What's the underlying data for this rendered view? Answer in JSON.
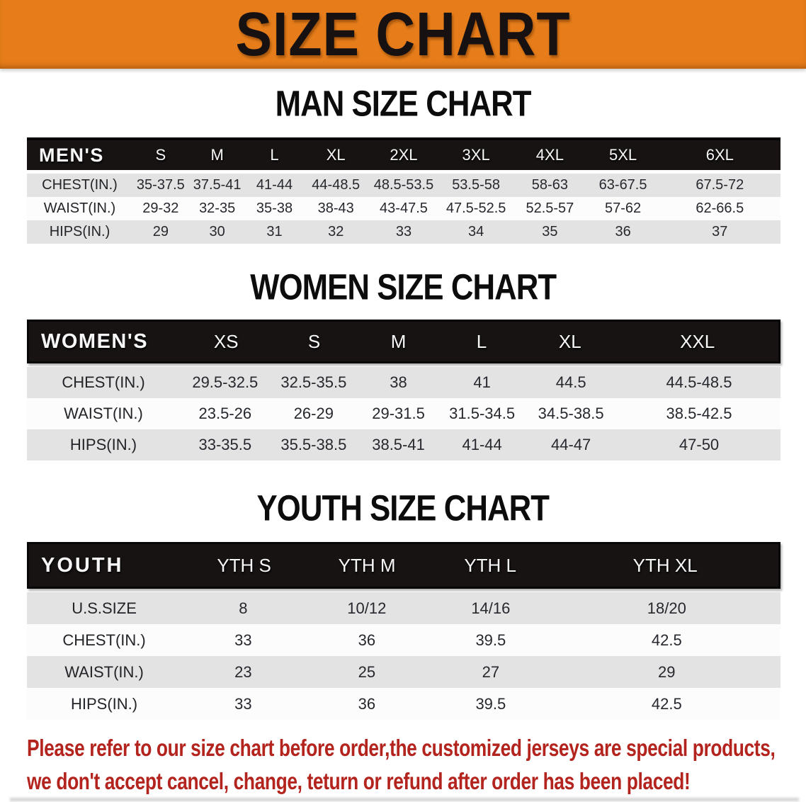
{
  "banner": {
    "title": "SIZE CHART",
    "bg_color": "#e67d1a"
  },
  "men": {
    "section_title": "MAN SIZE CHART",
    "header_label": "MEN'S",
    "columns": [
      "S",
      "M",
      "L",
      "XL",
      "2XL",
      "3XL",
      "4XL",
      "5XL",
      "6XL"
    ],
    "rows": [
      {
        "label": "CHEST(IN.)",
        "values": [
          "35-37.5",
          "37.5-41",
          "41-44",
          "44-48.5",
          "48.5-53.5",
          "53.5-58",
          "58-63",
          "63-67.5",
          "67.5-72"
        ]
      },
      {
        "label": "WAIST(IN.)",
        "values": [
          "29-32",
          "32-35",
          "35-38",
          "38-43",
          "43-47.5",
          "47.5-52.5",
          "52.5-57",
          "57-62",
          "62-66.5"
        ]
      },
      {
        "label": "HIPS(IN.)",
        "values": [
          "29",
          "30",
          "31",
          "32",
          "33",
          "34",
          "35",
          "36",
          "37"
        ]
      }
    ]
  },
  "women": {
    "section_title": "WOMEN SIZE CHART",
    "header_label": "WOMEN'S",
    "columns": [
      "XS",
      "S",
      "M",
      "L",
      "XL",
      "XXL"
    ],
    "rows": [
      {
        "label": "CHEST(IN.)",
        "values": [
          "29.5-32.5",
          "32.5-35.5",
          "38",
          "41",
          "44.5",
          "44.5-48.5"
        ]
      },
      {
        "label": "WAIST(IN.)",
        "values": [
          "23.5-26",
          "26-29",
          "29-31.5",
          "31.5-34.5",
          "34.5-38.5",
          "38.5-42.5"
        ]
      },
      {
        "label": "HIPS(IN.)",
        "values": [
          "33-35.5",
          "35.5-38.5",
          "38.5-41",
          "41-44",
          "44-47",
          "47-50"
        ]
      }
    ]
  },
  "youth": {
    "section_title": "YOUTH SIZE CHART",
    "header_label": "YOUTH",
    "columns": [
      "YTH S",
      "YTH M",
      "YTH L",
      "YTH XL"
    ],
    "rows": [
      {
        "label": "U.S.SIZE",
        "values": [
          "8",
          "10/12",
          "14/16",
          "18/20"
        ]
      },
      {
        "label": "CHEST(IN.)",
        "values": [
          "33",
          "36",
          "39.5",
          "42.5"
        ]
      },
      {
        "label": "WAIST(IN.)",
        "values": [
          "23",
          "25",
          "27",
          "29"
        ]
      },
      {
        "label": "HIPS(IN.)",
        "values": [
          "33",
          "36",
          "39.5",
          "42.5"
        ]
      }
    ]
  },
  "footer": {
    "line1": "Please refer to our size chart before order,the customized jerseys are special products,",
    "line2": "we don't accept cancel, change, teturn or refund after order has been placed!"
  },
  "colors": {
    "banner_orange": "#e67d1a",
    "header_black": "#171313",
    "row_gray": "#e3e3e3",
    "row_white": "#fcfcfc",
    "data_text": "#26282e",
    "footer_red": "#b4241e"
  }
}
